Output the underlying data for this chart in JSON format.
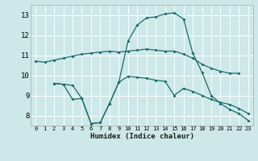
{
  "xlabel": "Humidex (Indice chaleur)",
  "xlim": [
    -0.5,
    23.5
  ],
  "ylim": [
    7.5,
    13.5
  ],
  "xticks": [
    0,
    1,
    2,
    3,
    4,
    5,
    6,
    7,
    8,
    9,
    10,
    11,
    12,
    13,
    14,
    15,
    16,
    17,
    18,
    19,
    20,
    21,
    22,
    23
  ],
  "yticks": [
    8,
    9,
    10,
    11,
    12,
    13
  ],
  "background_color": "#cde8e8",
  "grid_color": "#b0d0d0",
  "line_color": "#1a6b6a",
  "line1_x": [
    0,
    1,
    2,
    3,
    4,
    5,
    6,
    7,
    8,
    9,
    10,
    11,
    12,
    13,
    14,
    15,
    16,
    17,
    18,
    19,
    20,
    21,
    22
  ],
  "line1_y": [
    10.7,
    10.65,
    10.75,
    10.85,
    10.95,
    11.05,
    11.1,
    11.15,
    11.2,
    11.15,
    11.2,
    11.25,
    11.3,
    11.25,
    11.2,
    11.2,
    11.05,
    10.85,
    10.55,
    10.35,
    10.2,
    10.1,
    10.1
  ],
  "line2_x": [
    2,
    3,
    4,
    5,
    6,
    7,
    8,
    9,
    10,
    11,
    12,
    13,
    14,
    15,
    16,
    17,
    18,
    19,
    20,
    21,
    22,
    23
  ],
  "line2_y": [
    9.6,
    9.55,
    9.5,
    8.85,
    7.6,
    7.65,
    8.6,
    9.65,
    9.95,
    9.9,
    9.85,
    9.75,
    9.7,
    9.0,
    9.35,
    9.2,
    9.0,
    8.8,
    8.65,
    8.55,
    8.35,
    8.1
  ],
  "line3_x": [
    2,
    3,
    4,
    5,
    6,
    7,
    8,
    9,
    10,
    11,
    12,
    13,
    14,
    15,
    16,
    17,
    18,
    19,
    20,
    21,
    22,
    23
  ],
  "line3_y": [
    9.6,
    9.55,
    8.8,
    8.85,
    7.6,
    7.65,
    8.6,
    9.65,
    11.7,
    12.5,
    12.85,
    12.9,
    13.05,
    13.1,
    12.8,
    11.1,
    10.15,
    9.0,
    8.6,
    8.3,
    8.1,
    7.75
  ]
}
